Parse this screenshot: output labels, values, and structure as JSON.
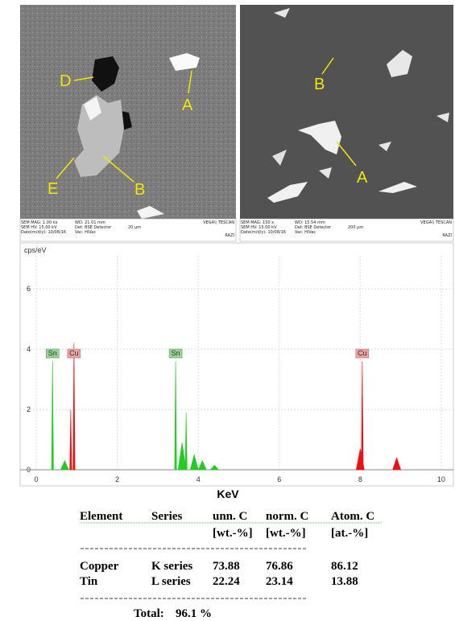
{
  "images": [
    {
      "labels": [
        "D",
        "A",
        "E",
        "B"
      ],
      "info": [
        "SEM MAG: 1.00 kx",
        "WD: 21.01 mm",
        "VEGA\\\\ TESCAN",
        "SEM HV: 15.00 kV",
        "Det: BSE Detector",
        "20 µm",
        "Date(m/d/y): 10/08/16",
        "Vac: HiVac",
        "RAZI"
      ]
    },
    {
      "labels": [
        "B",
        "A"
      ],
      "info": [
        "SEM MAG: 150 x",
        "WD: 15.54 mm",
        "VEGA\\\\ TESCAN",
        "SEM HV: 15.00 kV",
        "Det: BSE Detector",
        "200 µm",
        "Date(m/d/y): 10/08/16",
        "Vac: HiVac",
        "RAZI"
      ]
    }
  ],
  "chart_data": {
    "type": "spectrum",
    "ylabel": "cps/eV",
    "xlabel": "KeV",
    "xlim": [
      -0.4,
      10.3
    ],
    "ylim": [
      0,
      7.1
    ],
    "xticks": [
      0,
      2,
      4,
      6,
      8,
      10
    ],
    "yticks": [
      0,
      2,
      4,
      6
    ],
    "grid": true,
    "series": [
      {
        "name": "Sn",
        "color": "#22cc22",
        "x": [
          0.4,
          0.7,
          3.44,
          3.6,
          3.7,
          3.9,
          4.1,
          4.4
        ],
        "values": [
          3.6,
          0.3,
          3.6,
          0.9,
          1.9,
          0.5,
          0.3,
          0.15
        ],
        "label_x": [
          0.4,
          3.44
        ]
      },
      {
        "name": "Cu",
        "color": "#ee1111",
        "x": [
          0.85,
          0.93,
          8.0,
          8.05,
          8.9
        ],
        "values": [
          2.0,
          4.2,
          0.7,
          3.6,
          0.4
        ],
        "label_x": [
          0.93,
          8.05
        ]
      }
    ]
  },
  "table": {
    "header": [
      "Element",
      "Series",
      "unn. C",
      "norm. C",
      "Atom. C"
    ],
    "units": [
      "[wt.-%]",
      "[wt.-%]",
      "[at.-%]"
    ],
    "rows": [
      [
        "Copper",
        "K series",
        73.88,
        76.86,
        86.12
      ],
      [
        "Tin",
        "L series",
        22.24,
        23.14,
        13.88
      ]
    ],
    "total_label": "Total:",
    "total": "96.1 %"
  }
}
